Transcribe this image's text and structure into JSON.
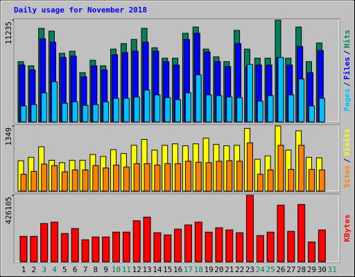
{
  "chart_data": {
    "type": "bar",
    "title": "Daily usage for November 2018",
    "title_color": "#0000ff",
    "separator": "/",
    "categories": [
      "1",
      "2",
      "3",
      "4",
      "5",
      "6",
      "7",
      "8",
      "9",
      "10",
      "11",
      "12",
      "13",
      "14",
      "15",
      "16",
      "17",
      "18",
      "19",
      "20",
      "21",
      "22",
      "23",
      "24",
      "25",
      "26",
      "27",
      "28",
      "29",
      "30",
      "31"
    ],
    "category_label_colors": [
      "#000000",
      "#000000",
      "#00805c",
      "#00805c",
      "#000000",
      "#000000",
      "#000000",
      "#000000",
      "#000000",
      "#00805c",
      "#00805c",
      "#000000",
      "#000000",
      "#000000",
      "#000000",
      "#000000",
      "#00805c",
      "#00805c",
      "#000000",
      "#000000",
      "#000000",
      "#000000",
      "#000000",
      "#00805c",
      "#00805c",
      "#000000",
      "#000000",
      "#000000",
      "#000000",
      "#000000",
      "#00805c"
    ],
    "panels": [
      {
        "ylim": [
          0,
          11235
        ],
        "yticks": [
          11235
        ],
        "series": [
          {
            "name": "Hits",
            "color": "#00805c",
            "values": [
              6650,
              6190,
              10320,
              10010,
              7570,
              7800,
              5430,
              6800,
              6190,
              8030,
              8640,
              9100,
              10320,
              8180,
              7030,
              7030,
              9780,
              10470,
              8030,
              7180,
              6650,
              10090,
              8030,
              7030,
              7030,
              11235,
              7030,
              10470,
              6650,
              8710,
              null
            ]
          },
          {
            "name": "Files",
            "color": "#0000ff",
            "values": [
              6270,
              5730,
              9170,
              8790,
              7110,
              7260,
              4970,
              6190,
              5730,
              7410,
              7640,
              7800,
              8790,
              7800,
              6650,
              6270,
              9100,
              9780,
              7720,
              6650,
              6110,
              8640,
              6110,
              6270,
              6270,
              7110,
              6270,
              8330,
              5430,
              7870,
              null
            ]
          },
          {
            "name": "Pages",
            "color": "#00c0ff",
            "values": [
              1760,
              1910,
              3210,
              4430,
              2060,
              2220,
              1830,
              1910,
              2220,
              2600,
              2600,
              2750,
              3520,
              2980,
              2680,
              2450,
              3210,
              5200,
              2980,
              2900,
              2750,
              2680,
              6340,
              2290,
              2900,
              7110,
              2980,
              4740,
              1760,
              2600,
              null
            ]
          }
        ]
      },
      {
        "ylim": [
          0,
          1349
        ],
        "yticks": [
          1349
        ],
        "series": [
          {
            "name": "Visits",
            "color": "#ffff00",
            "values": [
              630,
              700,
              920,
              640,
              590,
              640,
              640,
              760,
              720,
              860,
              780,
              950,
              1070,
              850,
              950,
              980,
              940,
              980,
              1100,
              970,
              940,
              950,
              1300,
              660,
              730,
              1349,
              850,
              1250,
              700,
              690,
              null
            ]
          },
          {
            "name": "Sites",
            "color": "#ff8000",
            "values": [
              350,
              410,
              560,
              530,
              400,
              440,
              440,
              530,
              480,
              540,
              500,
              570,
              570,
              540,
              570,
              570,
              620,
              600,
              590,
              620,
              630,
              620,
              1000,
              350,
              440,
              950,
              450,
              950,
              450,
              440,
              null
            ]
          }
        ]
      },
      {
        "ylim": [
          0,
          426105
        ],
        "yticks": [
          426105
        ],
        "series": [
          {
            "name": "KBytes",
            "color": "#ff0000",
            "values": [
              163000,
              163000,
              245000,
              254000,
              181000,
              213000,
              141000,
              159000,
              159000,
              190000,
              190000,
              263000,
              286000,
              186000,
              172000,
              209000,
              236000,
              254000,
              190000,
              218000,
              204000,
              186000,
              426105,
              168000,
              190000,
              363000,
              195000,
              367000,
              127000,
              204000,
              null
            ]
          }
        ]
      }
    ]
  }
}
